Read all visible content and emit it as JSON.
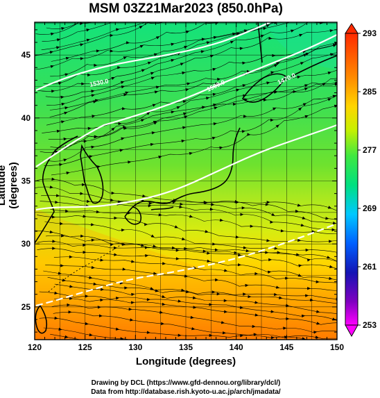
{
  "title": "MSM 03Z21Mar2023 (850.0hPa)",
  "axes": {
    "xlabel": "Longitude (degrees)",
    "ylabel": "Latitude  (degrees)",
    "x_range": [
      120,
      150
    ],
    "y_range": [
      22.4,
      47.6
    ],
    "x_ticks": [
      120,
      125,
      130,
      135,
      140,
      145,
      150
    ],
    "y_ticks": [
      25,
      30,
      35,
      40,
      45
    ],
    "grid": true
  },
  "colorbar": {
    "min": 253,
    "max": 293,
    "tick_labels": [
      "293",
      "285",
      "277",
      "269",
      "261",
      "253"
    ],
    "colors": [
      "#ff0000",
      "#ff8a00",
      "#ffd500",
      "#c8f000",
      "#50e800",
      "#00e070",
      "#00c8ff",
      "#0040ff",
      "#1010c0",
      "#ff00ff"
    ]
  },
  "contour_labels": [
    "1530.0",
    "1500.0",
    "1470.0"
  ],
  "credits": {
    "line1": "Drawing by DCL (https://www.gfd-dennou.org/library/dcl/)",
    "line2": "Data from http://database.rish.kyoto-u.ac.jp/arch/jmadata/"
  }
}
